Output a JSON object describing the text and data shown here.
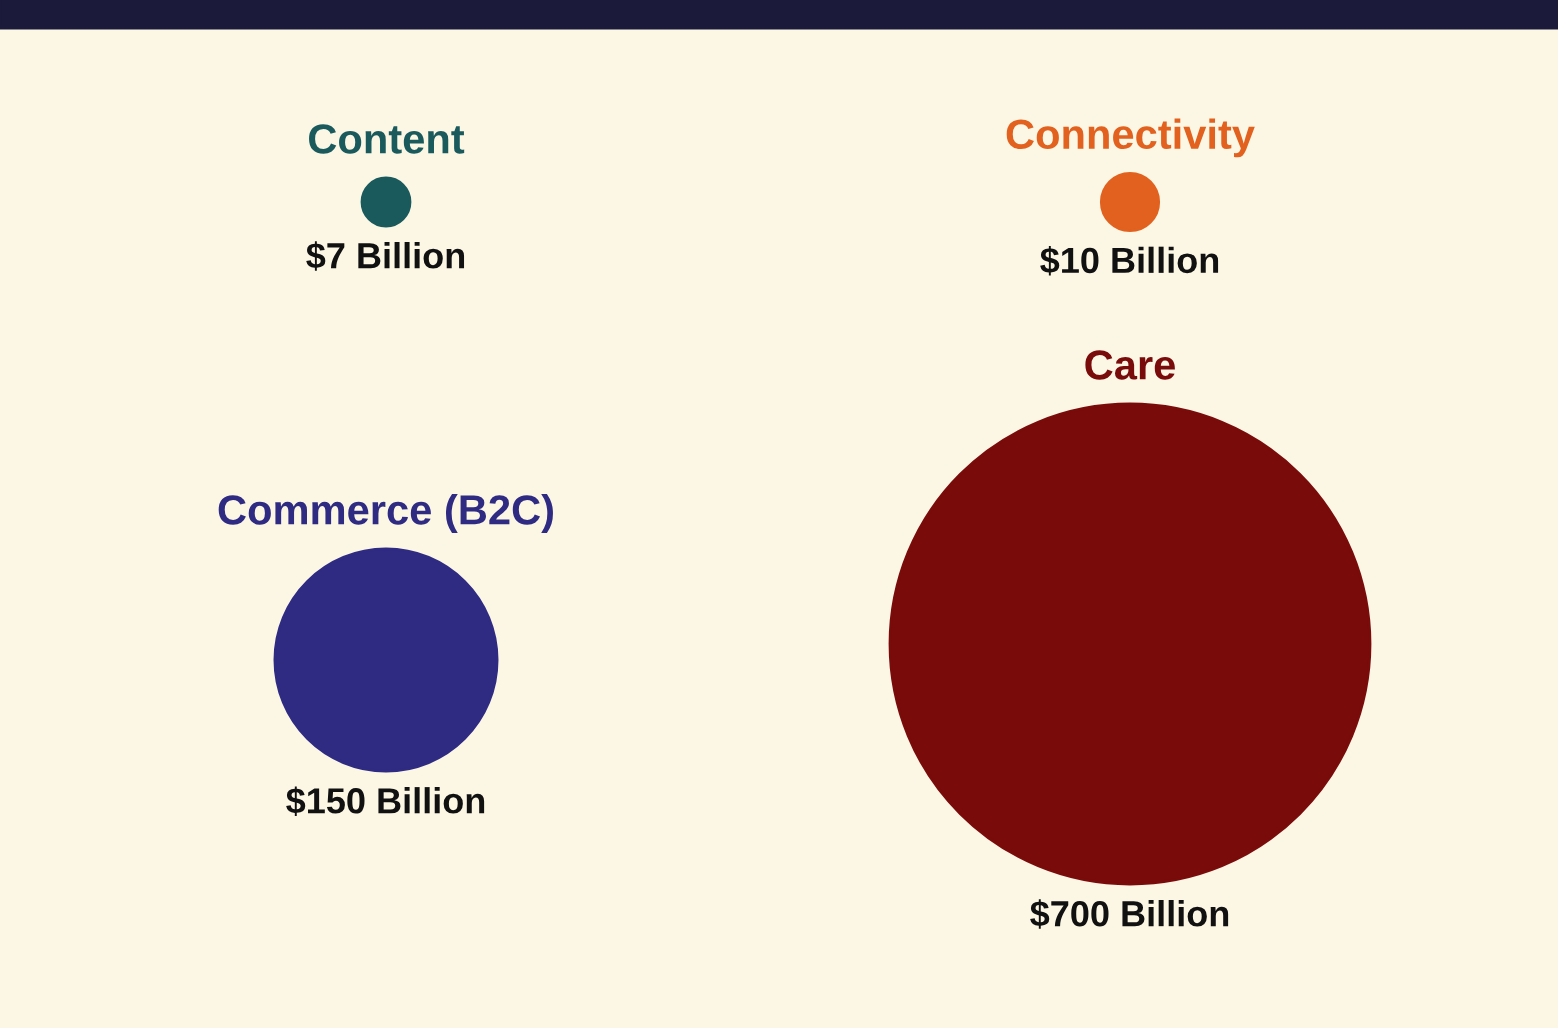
{
  "chart_data": {
    "type": "other",
    "categories": [
      "Content",
      "Connectivity",
      "Commerce (B2C)",
      "Care"
    ],
    "values": [
      7,
      10,
      150,
      700
    ],
    "colors": [
      "#1b5a5c",
      "#e2611f",
      "#2f2a82",
      "#7a0b0b"
    ],
    "value_labels": [
      "$7 Billion",
      "$10 Billion",
      "$150 Billion",
      "$700 Billion"
    ]
  }
}
